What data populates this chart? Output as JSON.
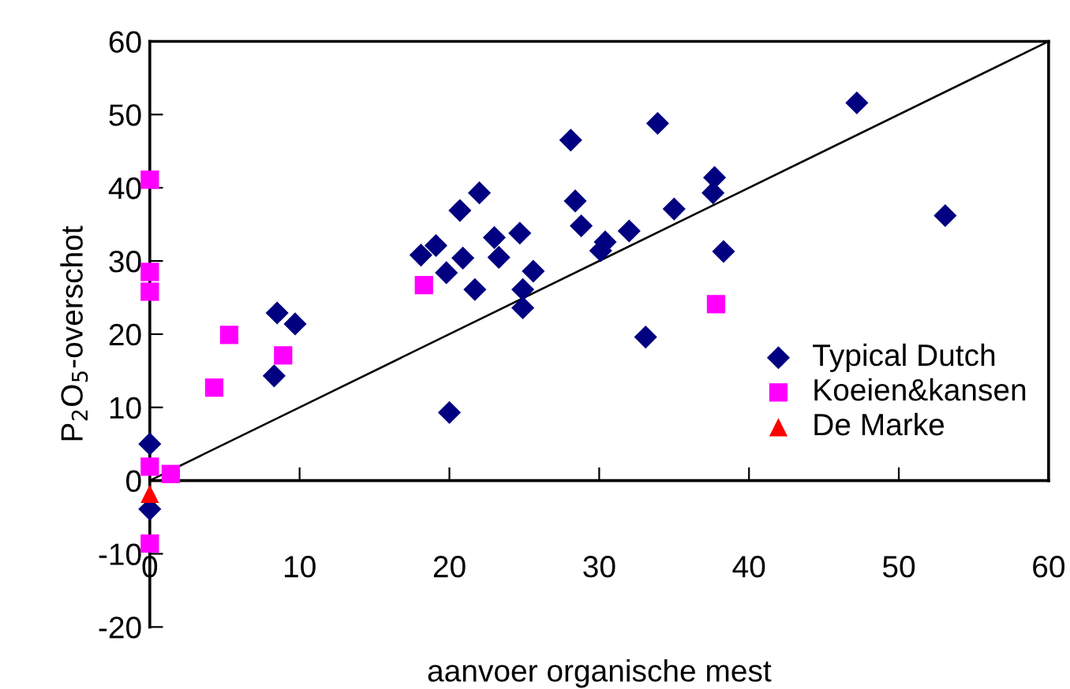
{
  "chart_data": {
    "type": "scatter",
    "xlabel": "aanvoer organische mest",
    "ylabel": "P$_{2}$O$_{5}$-overschot",
    "xlim": [
      0,
      60
    ],
    "ylim": [
      -20,
      60
    ],
    "xticks": [
      0,
      10,
      20,
      30,
      40,
      50,
      60
    ],
    "yticks": [
      -20,
      -10,
      0,
      10,
      20,
      30,
      40,
      50,
      60
    ],
    "grid": false,
    "legend": "bottom right",
    "series": [
      {
        "name": "Typical Dutch",
        "color": "#000080",
        "marker": "diamond",
        "x": [
          0,
          0,
          8.5,
          9.7,
          8.3,
          18.1,
          19.1,
          19.8,
          20.7,
          20.9,
          21.7,
          22,
          23,
          23.3,
          24.7,
          24.9,
          24.9,
          25.6,
          20,
          28.1,
          28.4,
          28.8,
          30.1,
          30.4,
          32,
          33.1,
          33.9,
          35,
          37.7,
          37.6,
          38.3,
          47.2,
          53.1
        ],
        "values": [
          5,
          -3.9,
          22.9,
          21.4,
          14.3,
          30.8,
          32.1,
          28.4,
          36.9,
          30.4,
          26.1,
          39.3,
          33.2,
          30.5,
          33.8,
          26.1,
          23.6,
          28.6,
          9.3,
          46.5,
          38.2,
          34.8,
          31.4,
          32.6,
          34.1,
          19.6,
          48.8,
          37.1,
          41.4,
          39.3,
          31.3,
          51.6,
          36.2
        ]
      },
      {
        "name": "Koeien&kansen",
        "color": "#ff00ff",
        "marker": "square",
        "x": [
          0,
          0,
          0,
          0,
          1.4,
          0,
          5.3,
          4.3,
          8.9,
          18.3,
          37.8
        ],
        "values": [
          41.1,
          28.5,
          25.8,
          1.9,
          0.9,
          -8.6,
          19.9,
          12.7,
          17.1,
          26.7,
          24.1
        ]
      },
      {
        "name": "De Marke",
        "color": "#ff0000",
        "marker": "triangle",
        "x": [
          0
        ],
        "values": [
          -1.8
        ]
      },
      {
        "type": "line",
        "color": "#000000",
        "line_style": "solid",
        "x": [
          0,
          60
        ],
        "values": [
          0,
          60
        ]
      }
    ]
  }
}
